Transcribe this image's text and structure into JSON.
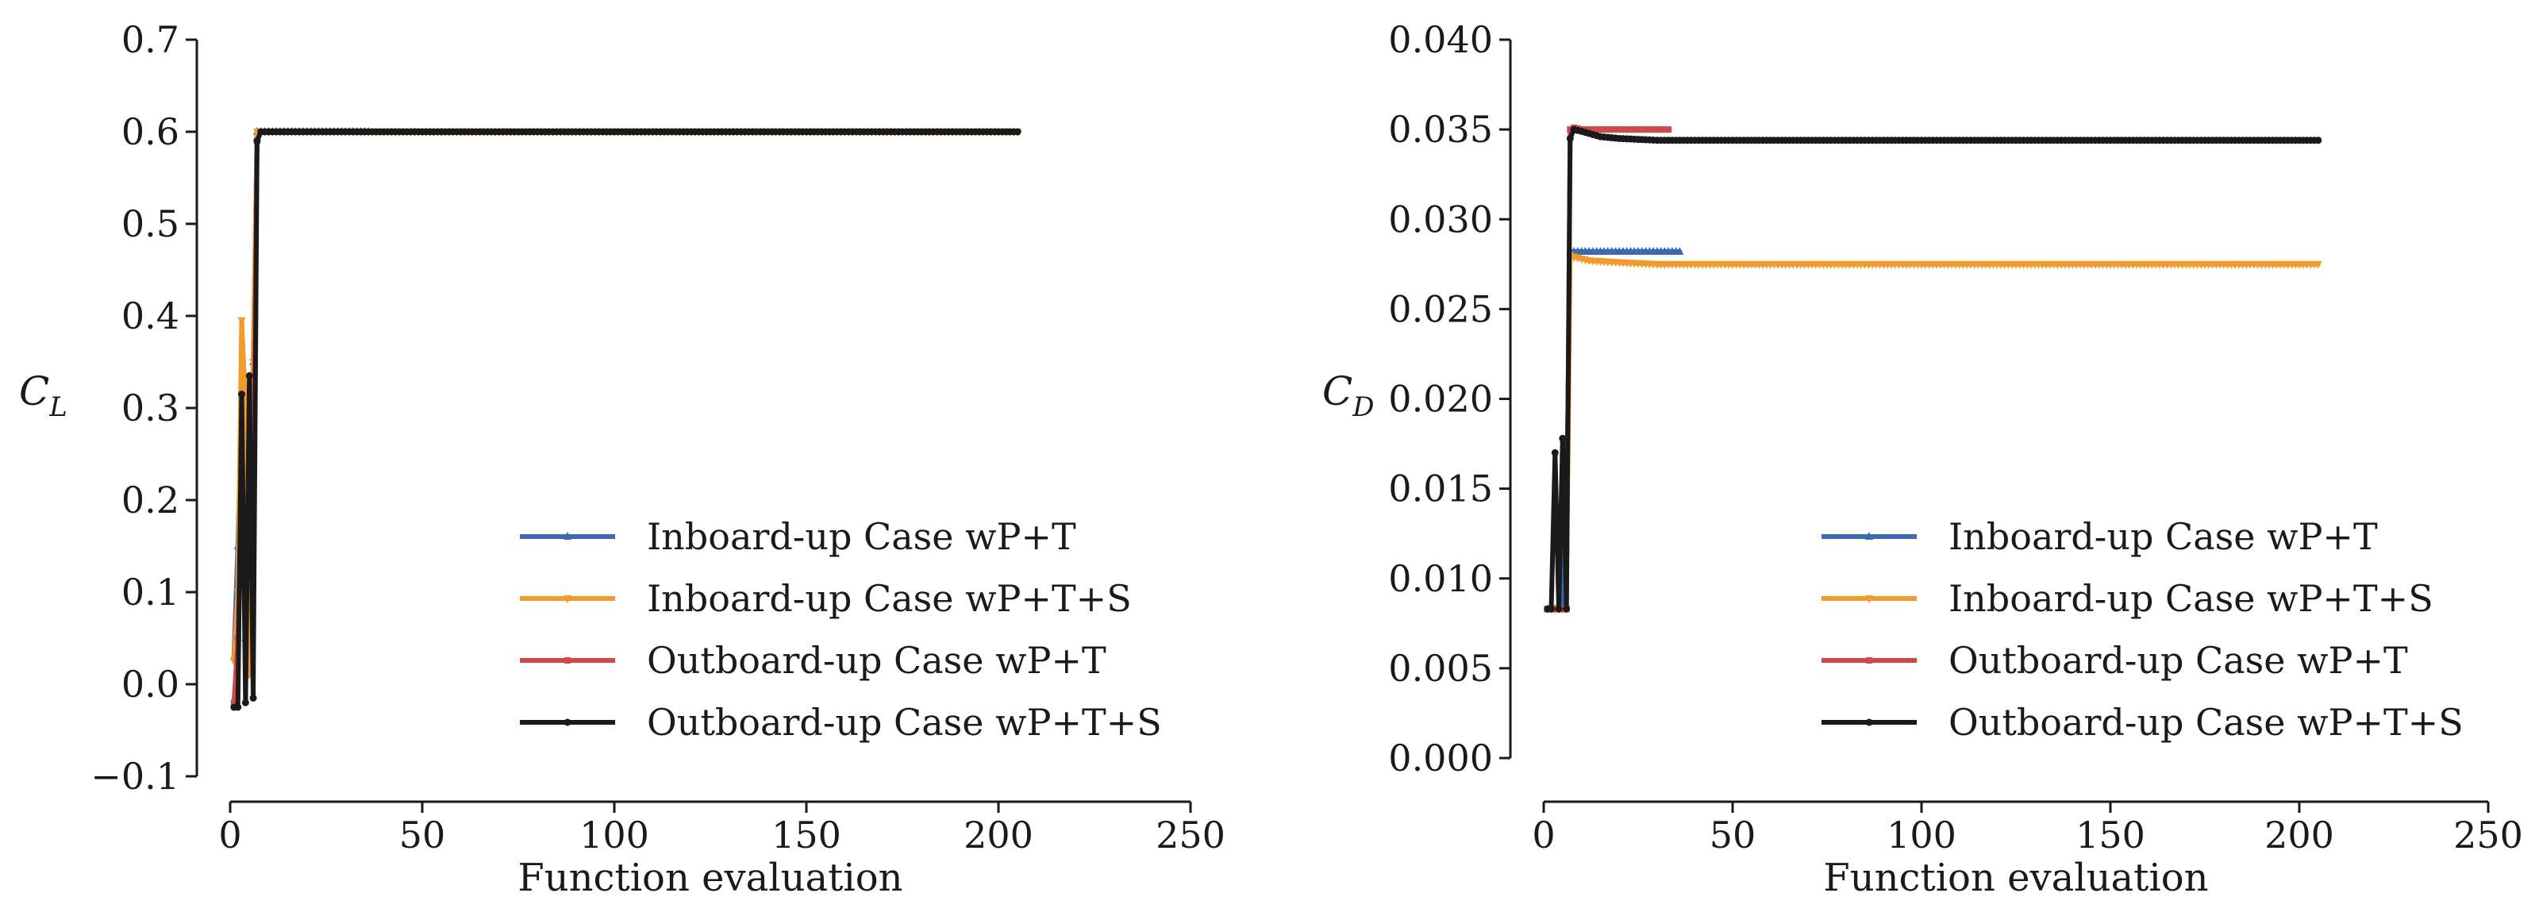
{
  "chart_data": [
    {
      "type": "line",
      "title": "",
      "xlabel": "Function evaluation",
      "ylabel": {
        "main": "C",
        "sub": "L"
      },
      "xlim": [
        0,
        250
      ],
      "ylim": [
        -0.1,
        0.7
      ],
      "xticks": [
        "0",
        "50",
        "100",
        "150",
        "200",
        "250"
      ],
      "yticks": [
        "−0.1",
        "0.0",
        "0.1",
        "0.2",
        "0.3",
        "0.4",
        "0.5",
        "0.6",
        "0.7"
      ],
      "grid": false,
      "legend_position": "lower-right",
      "series": [
        {
          "name": "Inboard-up Case wP+T",
          "color": "#3a6bb0",
          "marker": "triangle-up",
          "x": [
            1,
            2,
            3,
            4,
            5,
            6,
            7,
            8,
            10,
            15,
            20,
            25,
            30,
            36
          ],
          "y": [
            0.03,
            0.15,
            0.3,
            0.05,
            0.04,
            0.35,
            0.6,
            0.6,
            0.6,
            0.6,
            0.6,
            0.6,
            0.6,
            0.6
          ]
        },
        {
          "name": "Inboard-up Case wP+T+S",
          "color": "#f39a2d",
          "marker": "triangle-down",
          "x": [
            1,
            2,
            3,
            4,
            5,
            6,
            7,
            8,
            10,
            20,
            50,
            100,
            150,
            200,
            205
          ],
          "y": [
            0.025,
            0.1,
            0.395,
            0.3,
            0.01,
            0.35,
            0.6,
            0.6,
            0.6,
            0.6,
            0.6,
            0.6,
            0.6,
            0.6,
            0.6
          ]
        },
        {
          "name": "Outboard-up Case wP+T",
          "color": "#cc4a4a",
          "marker": "square",
          "x": [
            1,
            2,
            3,
            4,
            5,
            6,
            7,
            8,
            10,
            15,
            20,
            25,
            30,
            33
          ],
          "y": [
            -0.02,
            0.05,
            0.2,
            0.1,
            0.25,
            0.2,
            0.59,
            0.6,
            0.6,
            0.6,
            0.6,
            0.6,
            0.6,
            0.6
          ]
        },
        {
          "name": "Outboard-up Case wP+T+S",
          "color": "#1a1a1a",
          "marker": "circle",
          "x": [
            1,
            2,
            3,
            4,
            5,
            6,
            7,
            8,
            10,
            20,
            50,
            100,
            150,
            200,
            205
          ],
          "y": [
            -0.025,
            -0.025,
            0.315,
            -0.02,
            0.335,
            -0.015,
            0.59,
            0.6,
            0.6,
            0.6,
            0.6,
            0.6,
            0.6,
            0.6,
            0.6
          ]
        }
      ]
    },
    {
      "type": "line",
      "title": "",
      "xlabel": "Function evaluation",
      "ylabel": {
        "main": "C",
        "sub": "D"
      },
      "xlim": [
        0,
        250
      ],
      "ylim": [
        0.0,
        0.04
      ],
      "xticks": [
        "0",
        "50",
        "100",
        "150",
        "200",
        "250"
      ],
      "yticks": [
        "0.000",
        "0.005",
        "0.010",
        "0.015",
        "0.020",
        "0.025",
        "0.030",
        "0.035",
        "0.040"
      ],
      "grid": false,
      "legend_position": "lower-right",
      "series": [
        {
          "name": "Inboard-up Case wP+T",
          "color": "#3a6bb0",
          "marker": "triangle-up",
          "x": [
            1,
            2,
            3,
            4,
            5,
            6,
            7,
            8,
            10,
            15,
            20,
            25,
            30,
            36
          ],
          "y": [
            0.0083,
            0.0083,
            0.0083,
            0.0083,
            0.0083,
            0.014,
            0.0282,
            0.0282,
            0.0282,
            0.0282,
            0.0282,
            0.0282,
            0.0282,
            0.0282
          ]
        },
        {
          "name": "Inboard-up Case wP+T+S",
          "color": "#f39a2d",
          "marker": "triangle-down",
          "x": [
            1,
            2,
            3,
            4,
            5,
            6,
            7,
            8,
            12,
            20,
            30,
            50,
            100,
            150,
            200,
            205
          ],
          "y": [
            0.0083,
            0.0083,
            0.0083,
            0.0083,
            0.0083,
            0.0083,
            0.028,
            0.0279,
            0.0277,
            0.0276,
            0.0275,
            0.0275,
            0.0275,
            0.0275,
            0.0275,
            0.0275
          ]
        },
        {
          "name": "Outboard-up Case wP+T",
          "color": "#cc4a4a",
          "marker": "square",
          "x": [
            1,
            2,
            3,
            4,
            5,
            6,
            7,
            8,
            10,
            15,
            20,
            25,
            30,
            33
          ],
          "y": [
            0.0083,
            0.0083,
            0.0083,
            0.0083,
            0.0083,
            0.0083,
            0.035,
            0.0351,
            0.035,
            0.035,
            0.035,
            0.035,
            0.035,
            0.035
          ]
        },
        {
          "name": "Outboard-up Case wP+T+S",
          "color": "#1a1a1a",
          "marker": "circle",
          "x": [
            1,
            2,
            3,
            4,
            5,
            6,
            7,
            8,
            10,
            15,
            20,
            30,
            50,
            100,
            150,
            200,
            205
          ],
          "y": [
            0.0083,
            0.0083,
            0.017,
            0.0083,
            0.0178,
            0.0083,
            0.0345,
            0.035,
            0.0349,
            0.0346,
            0.0345,
            0.0344,
            0.0344,
            0.0344,
            0.0344,
            0.0344,
            0.0344
          ]
        }
      ]
    }
  ]
}
